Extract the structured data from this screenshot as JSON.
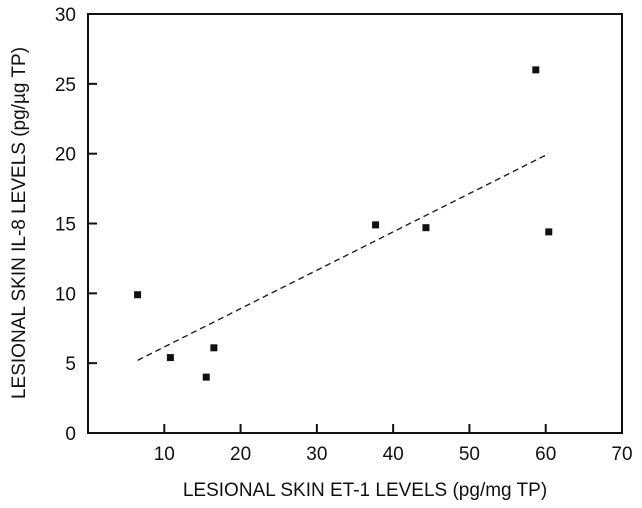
{
  "chart_data": {
    "type": "scatter",
    "title": "",
    "xlabel": "LESIONAL SKIN ET-1 LEVELS (pg/mg TP)",
    "ylabel": "LESIONAL SKIN IL-8 LEVELS (pg/µg TP)",
    "xlim": [
      0,
      70
    ],
    "ylim": [
      0,
      30
    ],
    "x_ticks": [
      10,
      20,
      30,
      40,
      50,
      60,
      70
    ],
    "y_ticks": [
      0,
      5,
      10,
      15,
      20,
      25,
      30
    ],
    "grid": false,
    "legend": "none",
    "series": [
      {
        "points": [
          {
            "x": 6.5,
            "y": 9.9
          },
          {
            "x": 10.8,
            "y": 5.4
          },
          {
            "x": 15.5,
            "y": 4.0
          },
          {
            "x": 16.5,
            "y": 6.1
          },
          {
            "x": 37.7,
            "y": 14.9
          },
          {
            "x": 44.3,
            "y": 14.7
          },
          {
            "x": 58.7,
            "y": 26.0
          },
          {
            "x": 60.4,
            "y": 14.4
          }
        ]
      }
    ],
    "trendline": {
      "style": "dashed",
      "from": {
        "x": 6.5,
        "y": 5.2
      },
      "to": {
        "x": 60.4,
        "y": 20.0
      }
    },
    "colors": {
      "axis": "#111111",
      "marker": "#111111",
      "trendline": "#222222"
    }
  }
}
